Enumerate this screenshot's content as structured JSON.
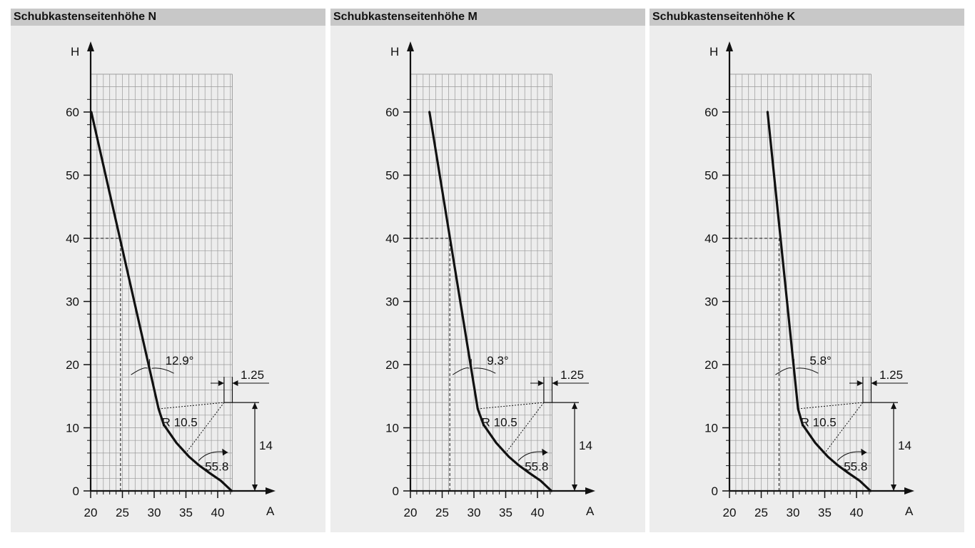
{
  "chart_data": [
    {
      "type": "line",
      "title": "Schubkastenseitenhöhe N",
      "xlabel": "A",
      "ylabel": "H",
      "xlim": [
        20,
        42.3
      ],
      "ylim": [
        0,
        66
      ],
      "xticks": [
        20,
        25,
        30,
        35,
        40
      ],
      "yticks": [
        0,
        10,
        20,
        30,
        40,
        50,
        60
      ],
      "grid": true,
      "series": [
        {
          "x": [
            20.1,
            30.7,
            31.5,
            33.5,
            35.5,
            37.0,
            38.5,
            40.5,
            42.2
          ],
          "y": [
            60,
            13,
            10.5,
            7.6,
            5.4,
            4.1,
            3.0,
            1.6,
            0
          ]
        }
      ],
      "reference_point": {
        "x": 24.7,
        "y": 40
      },
      "annotations": {
        "angle_top": "12.9°",
        "radius": "R 10.5",
        "offset": "1.25",
        "height": "14",
        "angle_bottom": "55.8"
      }
    },
    {
      "type": "line",
      "title": "Schubkastenseitenhöhe M",
      "xlabel": "A",
      "ylabel": "H",
      "xlim": [
        20,
        42.3
      ],
      "ylim": [
        0,
        66
      ],
      "xticks": [
        20,
        25,
        30,
        35,
        40
      ],
      "yticks": [
        0,
        10,
        20,
        30,
        40,
        50,
        60
      ],
      "grid": true,
      "series": [
        {
          "x": [
            23.0,
            30.6,
            31.5,
            33.5,
            35.5,
            37.0,
            38.5,
            40.5,
            42.2
          ],
          "y": [
            60,
            13,
            10.5,
            7.6,
            5.4,
            4.1,
            3.0,
            1.6,
            0
          ]
        }
      ],
      "reference_point": {
        "x": 26.2,
        "y": 40
      },
      "annotations": {
        "angle_top": "9.3°",
        "radius": "R 10.5",
        "offset": "1.25",
        "height": "14",
        "angle_bottom": "55.8"
      }
    },
    {
      "type": "line",
      "title": "Schubkastenseitenhöhe K",
      "xlabel": "A",
      "ylabel": "H",
      "xlim": [
        20,
        42.3
      ],
      "ylim": [
        0,
        66
      ],
      "xticks": [
        20,
        25,
        30,
        35,
        40
      ],
      "yticks": [
        0,
        10,
        20,
        30,
        40,
        50,
        60
      ],
      "grid": true,
      "series": [
        {
          "x": [
            26.0,
            30.8,
            31.5,
            33.5,
            35.5,
            37.0,
            38.5,
            40.5,
            42.2
          ],
          "y": [
            60,
            13,
            10.5,
            7.6,
            5.4,
            4.1,
            3.0,
            1.6,
            0
          ]
        }
      ],
      "reference_point": {
        "x": 27.8,
        "y": 40
      },
      "annotations": {
        "angle_top": "5.8°",
        "radius": "R 10.5",
        "offset": "1.25",
        "height": "14",
        "angle_bottom": "55.8"
      }
    }
  ],
  "colors": {
    "panel_bg": "#ededed",
    "header_bg": "#c8c8c8",
    "grid": "#9a9a9a",
    "curve": "#111111"
  }
}
